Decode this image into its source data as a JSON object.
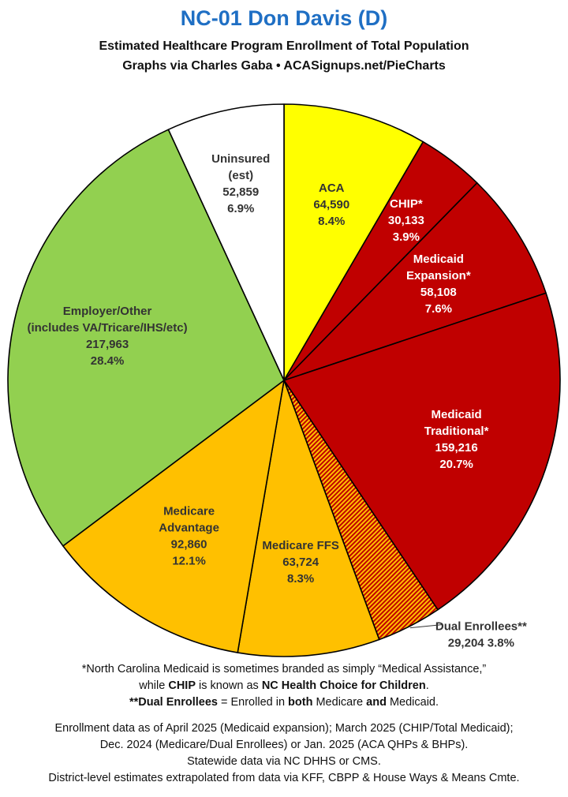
{
  "header": {
    "title": "NC-01 Don Davis (D)",
    "subtitle": "Estimated Healthcare Program Enrollment of Total Population",
    "credit": "Graphs via Charles Gaba  •  ACASignups.net/PieCharts"
  },
  "chart_data": {
    "type": "pie",
    "title": "NC-01 Don Davis (D)",
    "subtitle": "Estimated Healthcare Program Enrollment of Total Population",
    "slices": [
      {
        "lines": [
          "ACA",
          "64,590",
          "8.4%"
        ],
        "value": 64590,
        "percent": 8.4,
        "color": "#ffff00",
        "label_color": "#333333"
      },
      {
        "lines": [
          "CHIP*",
          "30,133",
          "3.9%"
        ],
        "value": 30133,
        "percent": 3.9,
        "color": "#c00000",
        "label_color": "#ffffff"
      },
      {
        "lines": [
          "Medicaid",
          "Expansion*",
          "58,108",
          "7.6%"
        ],
        "value": 58108,
        "percent": 7.6,
        "color": "#c00000",
        "label_color": "#ffffff"
      },
      {
        "lines": [
          "Medicaid",
          "Traditional*",
          "159,216",
          "20.7%"
        ],
        "value": 159216,
        "percent": 20.7,
        "color": "#c00000",
        "label_color": "#ffffff"
      },
      {
        "lines": [
          "Dual Enrollees**",
          "29,204 3.8%"
        ],
        "value": 29204,
        "percent": 3.8,
        "color": "#c00000",
        "pattern": "hatched",
        "label_color": "#333333",
        "label_outside": true
      },
      {
        "lines": [
          "Medicare FFS",
          "63,724",
          "8.3%"
        ],
        "value": 63724,
        "percent": 8.3,
        "color": "#ffc000",
        "label_color": "#333333"
      },
      {
        "lines": [
          "Medicare",
          "Advantage",
          "92,860",
          "12.1%"
        ],
        "value": 92860,
        "percent": 12.1,
        "color": "#ffc000",
        "label_color": "#333333"
      },
      {
        "lines": [
          "Employer/Other",
          "(includes VA/Tricare/IHS/etc)",
          "217,963",
          "28.4%"
        ],
        "value": 217963,
        "percent": 28.4,
        "color": "#92d050",
        "label_color": "#333333"
      },
      {
        "lines": [
          "Uninsured",
          "(est)",
          "52,859",
          "6.9%"
        ],
        "value": 52859,
        "percent": 6.9,
        "color": "#ffffff",
        "label_color": "#333333"
      }
    ]
  },
  "footnotes": {
    "n1_line1": "*North Carolina Medicaid is sometimes branded as simply “Medical Assistance,”",
    "n1_line2_a": "while ",
    "n1_line2_b": "CHIP",
    "n1_line2_c": " is known as ",
    "n1_line2_d": "NC Health Choice for Children",
    "n1_line2_e": ".",
    "n2_a": "**Dual Enrollees",
    "n2_b": " = Enrolled in ",
    "n2_c": "both",
    "n2_d": " Medicare ",
    "n2_e": "and",
    "n2_f": " Medicaid.",
    "d1": "Enrollment data as of April 2025 (Medicaid expansion); March 2025 (CHIP/Total Medicaid);",
    "d2": "Dec. 2024 (Medicare/Dual Enrollees) or Jan. 2025 (ACA QHPs & BHPs).",
    "d3": "Statewide data via NC DHHS or CMS.",
    "d4": "District-level estimates extrapolated from data via KFF, CBPP & House Ways & Means Cmte."
  }
}
